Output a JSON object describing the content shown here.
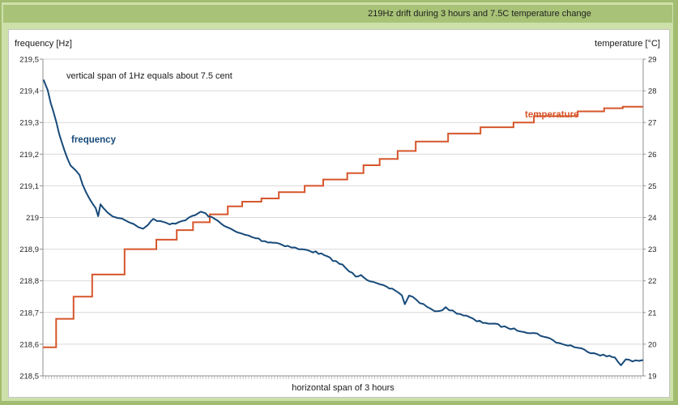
{
  "header": {
    "title": "219Hz drift during 3 hours and 7.5C temperature change"
  },
  "panel": {
    "left_axis_title": "frequency [Hz]",
    "right_axis_title": "temperature [°C]",
    "x_axis_label": "horizontal span of 3 hours",
    "annotation": "vertical span of 1Hz equals about 7.5 cent",
    "series_labels": {
      "frequency": "frequency",
      "temperature": "temperature"
    }
  },
  "colors": {
    "background_green": "#cde0aa",
    "band_green": "#a8c377",
    "frame_green": "#a2bd71",
    "frequency_line": "#174a7a",
    "temperature_line": "#d6562b",
    "grid": "#d9d9d9",
    "axis": "#8f8f8f",
    "minor_tick": "#b3b3b3",
    "tick_text": "#262626"
  },
  "chart_data": {
    "type": "line",
    "title": "219Hz drift during 3 hours and 7.5C temperature change",
    "x_axis": {
      "label": "horizontal span of 3 hours",
      "span_hours": 3,
      "range": [
        0,
        1
      ]
    },
    "left_axis": {
      "label": "frequency [Hz]",
      "min": 218.5,
      "max": 219.5,
      "ticks": [
        "219,5",
        "219,4",
        "219,3",
        "219,2",
        "219,1",
        "219",
        "218,9",
        "218,8",
        "218,7",
        "218,6",
        "218,5"
      ]
    },
    "right_axis": {
      "label": "temperature [°C]",
      "min": 19,
      "max": 29,
      "ticks": [
        "29",
        "28",
        "27",
        "26",
        "25",
        "24",
        "23",
        "22",
        "21",
        "20",
        "19"
      ]
    },
    "grid": true,
    "legend_position": "inline-labels",
    "annotation": "vertical span of 1Hz equals about 7.5 cent",
    "series": [
      {
        "name": "frequency",
        "axis": "left",
        "style": "line",
        "color": "#174a7a",
        "noise_hz": 0.004,
        "points": [
          [
            0.001,
            219.435
          ],
          [
            0.008,
            219.4
          ],
          [
            0.018,
            219.33
          ],
          [
            0.027,
            219.265
          ],
          [
            0.036,
            219.21
          ],
          [
            0.046,
            219.165
          ],
          [
            0.054,
            219.15
          ],
          [
            0.061,
            219.135
          ],
          [
            0.066,
            219.105
          ],
          [
            0.072,
            219.08
          ],
          [
            0.077,
            219.06
          ],
          [
            0.082,
            219.045
          ],
          [
            0.088,
            219.03
          ],
          [
            0.092,
            219.005
          ],
          [
            0.096,
            219.04
          ],
          [
            0.101,
            219.03
          ],
          [
            0.108,
            219.015
          ],
          [
            0.116,
            219.005
          ],
          [
            0.124,
            219.0
          ],
          [
            0.132,
            218.995
          ],
          [
            0.142,
            218.988
          ],
          [
            0.151,
            218.98
          ],
          [
            0.159,
            218.97
          ],
          [
            0.167,
            218.966
          ],
          [
            0.175,
            218.978
          ],
          [
            0.184,
            218.995
          ],
          [
            0.19,
            218.99
          ],
          [
            0.2,
            218.985
          ],
          [
            0.211,
            218.978
          ],
          [
            0.221,
            218.982
          ],
          [
            0.232,
            218.99
          ],
          [
            0.243,
            218.998
          ],
          [
            0.254,
            219.008
          ],
          [
            0.263,
            219.018
          ],
          [
            0.271,
            219.012
          ],
          [
            0.281,
            219.0
          ],
          [
            0.292,
            218.988
          ],
          [
            0.302,
            218.975
          ],
          [
            0.313,
            218.963
          ],
          [
            0.324,
            218.952
          ],
          [
            0.337,
            218.945
          ],
          [
            0.354,
            218.935
          ],
          [
            0.37,
            218.925
          ],
          [
            0.389,
            218.92
          ],
          [
            0.408,
            218.91
          ],
          [
            0.426,
            218.9
          ],
          [
            0.445,
            218.895
          ],
          [
            0.464,
            218.885
          ],
          [
            0.483,
            218.865
          ],
          [
            0.499,
            218.85
          ],
          [
            0.51,
            218.83
          ],
          [
            0.521,
            218.815
          ],
          [
            0.53,
            218.82
          ],
          [
            0.544,
            218.8
          ],
          [
            0.557,
            218.79
          ],
          [
            0.572,
            218.78
          ],
          [
            0.587,
            218.77
          ],
          [
            0.598,
            218.755
          ],
          [
            0.603,
            218.725
          ],
          [
            0.61,
            218.755
          ],
          [
            0.622,
            218.74
          ],
          [
            0.634,
            218.725
          ],
          [
            0.646,
            218.71
          ],
          [
            0.659,
            218.705
          ],
          [
            0.671,
            218.715
          ],
          [
            0.683,
            218.705
          ],
          [
            0.696,
            218.695
          ],
          [
            0.71,
            218.685
          ],
          [
            0.723,
            218.672
          ],
          [
            0.737,
            218.668
          ],
          [
            0.753,
            218.663
          ],
          [
            0.769,
            218.655
          ],
          [
            0.785,
            218.648
          ],
          [
            0.802,
            218.64
          ],
          [
            0.818,
            218.635
          ],
          [
            0.834,
            218.625
          ],
          [
            0.85,
            218.612
          ],
          [
            0.865,
            218.6
          ],
          [
            0.879,
            218.596
          ],
          [
            0.892,
            218.588
          ],
          [
            0.907,
            218.578
          ],
          [
            0.923,
            218.57
          ],
          [
            0.939,
            218.562
          ],
          [
            0.953,
            218.558
          ],
          [
            0.963,
            218.535
          ],
          [
            0.971,
            218.552
          ],
          [
            0.982,
            218.545
          ],
          [
            0.993,
            218.548
          ],
          [
            1.0,
            218.55
          ]
        ]
      },
      {
        "name": "temperature",
        "axis": "right",
        "style": "step",
        "color": "#d6562b",
        "points": [
          [
            0.0,
            19.9
          ],
          [
            0.022,
            20.8
          ],
          [
            0.051,
            21.5
          ],
          [
            0.082,
            22.2
          ],
          [
            0.136,
            23.0
          ],
          [
            0.189,
            23.3
          ],
          [
            0.223,
            23.6
          ],
          [
            0.25,
            23.85
          ],
          [
            0.278,
            24.1
          ],
          [
            0.308,
            24.35
          ],
          [
            0.332,
            24.5
          ],
          [
            0.364,
            24.6
          ],
          [
            0.393,
            24.8
          ],
          [
            0.436,
            25.0
          ],
          [
            0.467,
            25.2
          ],
          [
            0.507,
            25.4
          ],
          [
            0.534,
            25.65
          ],
          [
            0.561,
            25.85
          ],
          [
            0.591,
            26.1
          ],
          [
            0.621,
            26.4
          ],
          [
            0.675,
            26.65
          ],
          [
            0.729,
            26.85
          ],
          [
            0.784,
            27.0
          ],
          [
            0.818,
            27.2
          ],
          [
            0.891,
            27.35
          ],
          [
            0.935,
            27.45
          ],
          [
            0.966,
            27.5
          ]
        ]
      }
    ]
  }
}
